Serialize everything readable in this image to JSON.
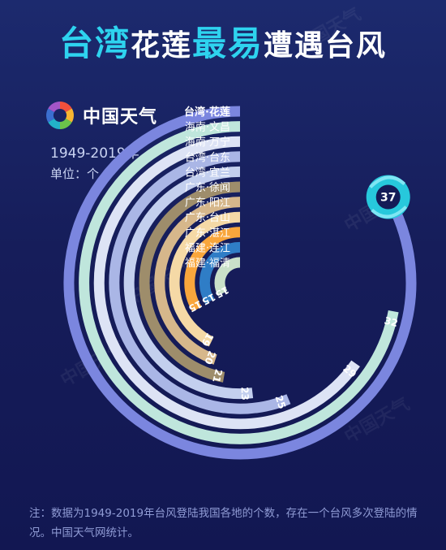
{
  "title": {
    "part1": "台湾",
    "part2": "花莲",
    "part3": "最易",
    "part4": "遭遇台风"
  },
  "brand": {
    "name": "中国天气"
  },
  "period": "1949-2019年",
  "unit": "单位：个",
  "chart_data": {
    "type": "bar",
    "categories": [
      "台湾·花莲",
      "海南·文昌",
      "海南·万宁",
      "台湾·台东",
      "台湾·宜兰",
      "广东·徐闻",
      "广东·阳江",
      "广东·台山",
      "广东·湛江",
      "福建·连江",
      "福建·福清"
    ],
    "values": [
      37,
      32,
      29,
      25,
      23,
      21,
      20,
      19,
      15,
      15,
      15
    ],
    "value_labels": [
      "37",
      "32",
      "29",
      "25",
      "23",
      "21",
      "20",
      "19",
      "15",
      "15",
      "15"
    ],
    "colors": [
      "#7b86df",
      "#bfe6dc",
      "#dde3f5",
      "#aab6e6",
      "#c3cfee",
      "#9e8d6b",
      "#d6b78b",
      "#f5d9a6",
      "#f9a63c",
      "#2f7dc6",
      "#c9e0c9"
    ],
    "max": 37
  },
  "note": "注：数据为1949-2019年台风登陆我国各地的个数，存在一个台风多次登陆的情况。中国天气网统计。",
  "watermark": "中国天气"
}
